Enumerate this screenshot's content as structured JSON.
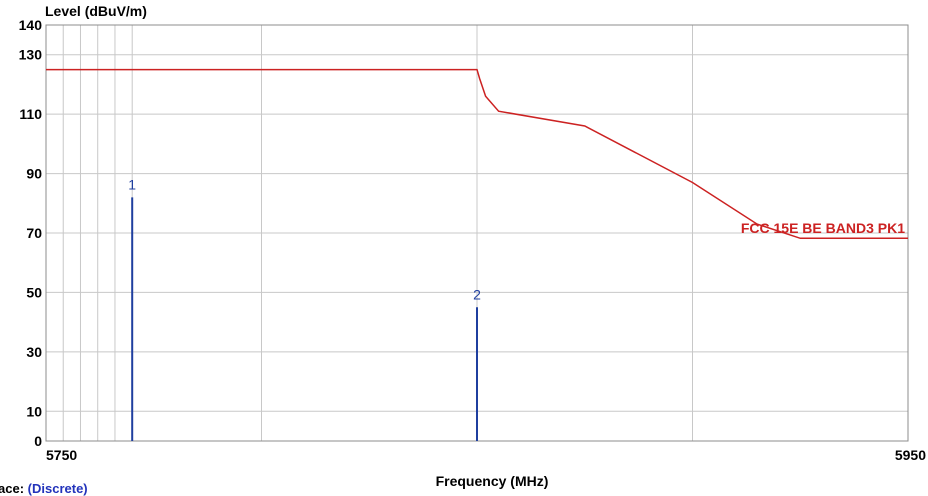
{
  "chart_data": {
    "type": "line",
    "ylabel": "Level (dBuV/m)",
    "xlabel": "Frequency (MHz)",
    "xlim": [
      5750,
      5950
    ],
    "ylim": [
      0,
      140
    ],
    "y_ticks": [
      0,
      10,
      30,
      50,
      70,
      90,
      110,
      130,
      140
    ],
    "x_tick_labels": [
      "5750",
      "5950"
    ],
    "x_gridlines": [
      5754,
      5758,
      5762,
      5766,
      5770,
      5800,
      5850,
      5900
    ],
    "grid": true,
    "series": [
      {
        "name": "FCC 15E BE BAND3 PK1",
        "color": "#cc2222",
        "x": [
          5750,
          5850,
          5850.6,
          5852,
          5855,
          5875,
          5900,
          5915,
          5925,
          5950
        ],
        "y": [
          125,
          125,
          122,
          116,
          111,
          106,
          87,
          73,
          68.2,
          68.2
        ]
      }
    ],
    "markers": [
      {
        "label": "1",
        "x": 5770,
        "y": 82,
        "color": "#1f3f9f"
      },
      {
        "label": "2",
        "x": 5850,
        "y": 45,
        "color": "#1f3f9f"
      }
    ]
  },
  "trace": {
    "prefix": "ace:",
    "value": "(Discrete)"
  }
}
